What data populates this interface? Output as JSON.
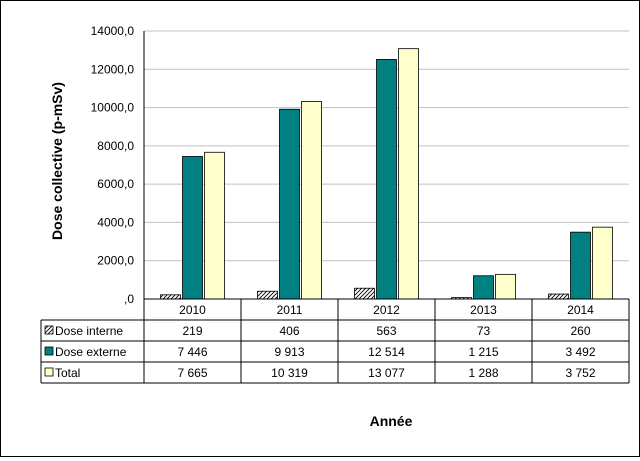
{
  "chart_data": {
    "type": "bar",
    "categories": [
      "2010",
      "2011",
      "2012",
      "2013",
      "2014"
    ],
    "series": [
      {
        "name": "Dose interne",
        "values": [
          219,
          406,
          563,
          73,
          260
        ],
        "labels": [
          "219",
          "406",
          "563",
          "73",
          "260"
        ],
        "color": "#ffffff",
        "pattern": "hatch"
      },
      {
        "name": "Dose externe",
        "values": [
          7446,
          9913,
          12514,
          1215,
          3492
        ],
        "labels": [
          "7 446",
          "9 913",
          "12 514",
          "1 215",
          "3 492"
        ],
        "color": "#008080"
      },
      {
        "name": "Total",
        "values": [
          7665,
          10319,
          13077,
          1288,
          3752
        ],
        "labels": [
          "7 665",
          "10 319",
          "13 077",
          "1 288",
          "3 752"
        ],
        "color": "#ffffcc"
      }
    ],
    "ylim": [
      0,
      14000
    ],
    "yticks": [
      "14000,0",
      "12000,0",
      "10000,0",
      "8000,0",
      "6000,0",
      "4000,0",
      "2000,0",
      ",0"
    ],
    "ytick_values": [
      14000,
      12000,
      10000,
      8000,
      6000,
      4000,
      2000,
      0
    ],
    "ylabel": "Dose collective (p-mSv)",
    "xlabel": "Année",
    "grid": true,
    "legend": "data table"
  }
}
